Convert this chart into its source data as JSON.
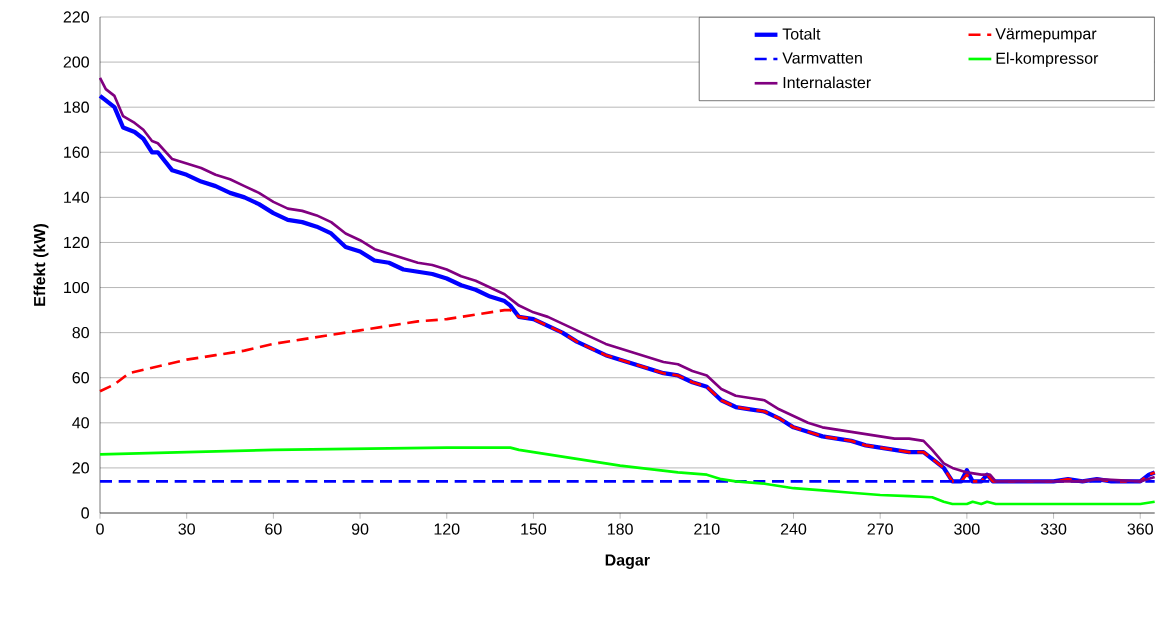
{
  "chart_data": {
    "type": "line",
    "xlabel": "Dagar",
    "ylabel": "Effekt (kW)",
    "xlim": [
      0,
      365
    ],
    "ylim": [
      0,
      220
    ],
    "xticks": [
      0,
      30,
      60,
      90,
      120,
      150,
      180,
      210,
      240,
      270,
      300,
      330,
      360
    ],
    "yticks": [
      0,
      20,
      40,
      60,
      80,
      100,
      120,
      140,
      160,
      180,
      200,
      220
    ],
    "grid": "y",
    "legend": "top right",
    "series": [
      {
        "name": "Totalt",
        "color": "#0000ff",
        "line_style": "solid",
        "x": [
          0,
          2,
          5,
          8,
          12,
          15,
          18,
          20,
          25,
          30,
          35,
          40,
          45,
          50,
          55,
          60,
          65,
          70,
          75,
          80,
          85,
          90,
          95,
          100,
          105,
          110,
          115,
          120,
          125,
          130,
          135,
          140,
          142,
          145,
          150,
          155,
          160,
          165,
          170,
          175,
          180,
          185,
          190,
          195,
          200,
          205,
          210,
          215,
          220,
          225,
          230,
          235,
          240,
          245,
          250,
          255,
          260,
          265,
          270,
          275,
          280,
          285,
          288,
          292,
          295,
          298,
          300,
          302,
          305,
          307,
          309,
          315,
          330,
          335,
          340,
          345,
          350,
          355,
          360,
          363,
          365
        ],
        "values": [
          185,
          183,
          180,
          171,
          169,
          166,
          160,
          160,
          152,
          150,
          147,
          145,
          142,
          140,
          137,
          133,
          130,
          129,
          127,
          124,
          118,
          116,
          112,
          111,
          108,
          107,
          106,
          104,
          101,
          99,
          96,
          94,
          92,
          87,
          86,
          83,
          80,
          76,
          73,
          70,
          68,
          66,
          64,
          62,
          61,
          58,
          56,
          50,
          47,
          46,
          45,
          42,
          38,
          36,
          34,
          33,
          32,
          30,
          29,
          28,
          27,
          27,
          24,
          20,
          14,
          14,
          19,
          14,
          14,
          17,
          14,
          14,
          14,
          15,
          14,
          15,
          14,
          14,
          14,
          17,
          18
        ]
      },
      {
        "name": "Värmepumpar",
        "color": "#ff0000",
        "line_style": "dashed",
        "x": [
          0,
          5,
          10,
          20,
          30,
          40,
          50,
          60,
          70,
          80,
          90,
          100,
          110,
          120,
          130,
          140,
          142,
          145,
          150,
          155,
          160,
          165,
          170,
          175,
          180,
          185,
          190,
          195,
          200,
          205,
          210,
          215,
          220,
          225,
          230,
          235,
          240,
          245,
          250,
          255,
          260,
          265,
          270,
          275,
          280,
          285,
          288,
          292,
          295,
          298,
          300,
          302,
          305,
          307,
          309,
          315,
          330,
          335,
          340,
          345,
          350,
          355,
          360,
          363,
          365
        ],
        "values": [
          54,
          57,
          62,
          65,
          68,
          70,
          72,
          75,
          77,
          79,
          81,
          83,
          85,
          86,
          88,
          90,
          90,
          87,
          86,
          83,
          80,
          76,
          73,
          70,
          68,
          66,
          64,
          62,
          61,
          58,
          56,
          50,
          47,
          46,
          45,
          42,
          38,
          36,
          34,
          33,
          32,
          30,
          29,
          28,
          27,
          27,
          24,
          20,
          14,
          14,
          17,
          14,
          14,
          17,
          14,
          14,
          14,
          15,
          14,
          15,
          14,
          14,
          14,
          17,
          18
        ]
      },
      {
        "name": "Varmvatten",
        "color": "#0000ff",
        "line_style": "dashed",
        "x": [
          0,
          365
        ],
        "values": [
          14,
          14
        ]
      },
      {
        "name": "El-kompressor",
        "color": "#00ff00",
        "line_style": "solid",
        "x": [
          0,
          30,
          60,
          90,
          120,
          142,
          145,
          150,
          160,
          170,
          180,
          190,
          200,
          210,
          215,
          220,
          230,
          240,
          250,
          260,
          270,
          280,
          288,
          292,
          295,
          300,
          302,
          305,
          307,
          310,
          330,
          345,
          360,
          365
        ],
        "values": [
          26,
          27,
          28,
          28.5,
          29,
          29,
          28,
          27,
          25,
          23,
          21,
          19.5,
          18,
          17,
          15,
          14,
          13,
          11,
          10,
          9,
          8,
          7.5,
          7,
          5,
          4,
          4,
          5,
          4,
          5,
          4,
          4,
          4,
          4,
          5
        ]
      },
      {
        "name": "Internalaster",
        "color": "#800080",
        "line_style": "solid",
        "x": [
          0,
          2,
          5,
          8,
          12,
          15,
          18,
          20,
          25,
          30,
          35,
          40,
          45,
          50,
          55,
          60,
          65,
          70,
          75,
          80,
          85,
          90,
          95,
          100,
          105,
          110,
          115,
          120,
          125,
          130,
          135,
          140,
          145,
          150,
          155,
          160,
          165,
          170,
          175,
          180,
          185,
          190,
          195,
          200,
          205,
          210,
          215,
          220,
          225,
          230,
          235,
          240,
          245,
          250,
          255,
          260,
          265,
          270,
          275,
          280,
          285,
          288,
          292,
          295,
          300,
          305,
          308,
          310,
          315,
          330,
          340,
          345,
          360,
          365
        ],
        "values": [
          193,
          188,
          185,
          176,
          173,
          170,
          165,
          164,
          157,
          155,
          153,
          150,
          148,
          145,
          142,
          138,
          135,
          134,
          132,
          129,
          124,
          121,
          117,
          115,
          113,
          111,
          110,
          108,
          105,
          103,
          100,
          97,
          92,
          89,
          87,
          84,
          81,
          78,
          75,
          73,
          71,
          69,
          67,
          66,
          63,
          61,
          55,
          52,
          51,
          50,
          46,
          43,
          40,
          38,
          37,
          36,
          35,
          34,
          33,
          33,
          32,
          28,
          22,
          20,
          18,
          17,
          17,
          14,
          14,
          14,
          14,
          15,
          14,
          16
        ]
      }
    ]
  }
}
